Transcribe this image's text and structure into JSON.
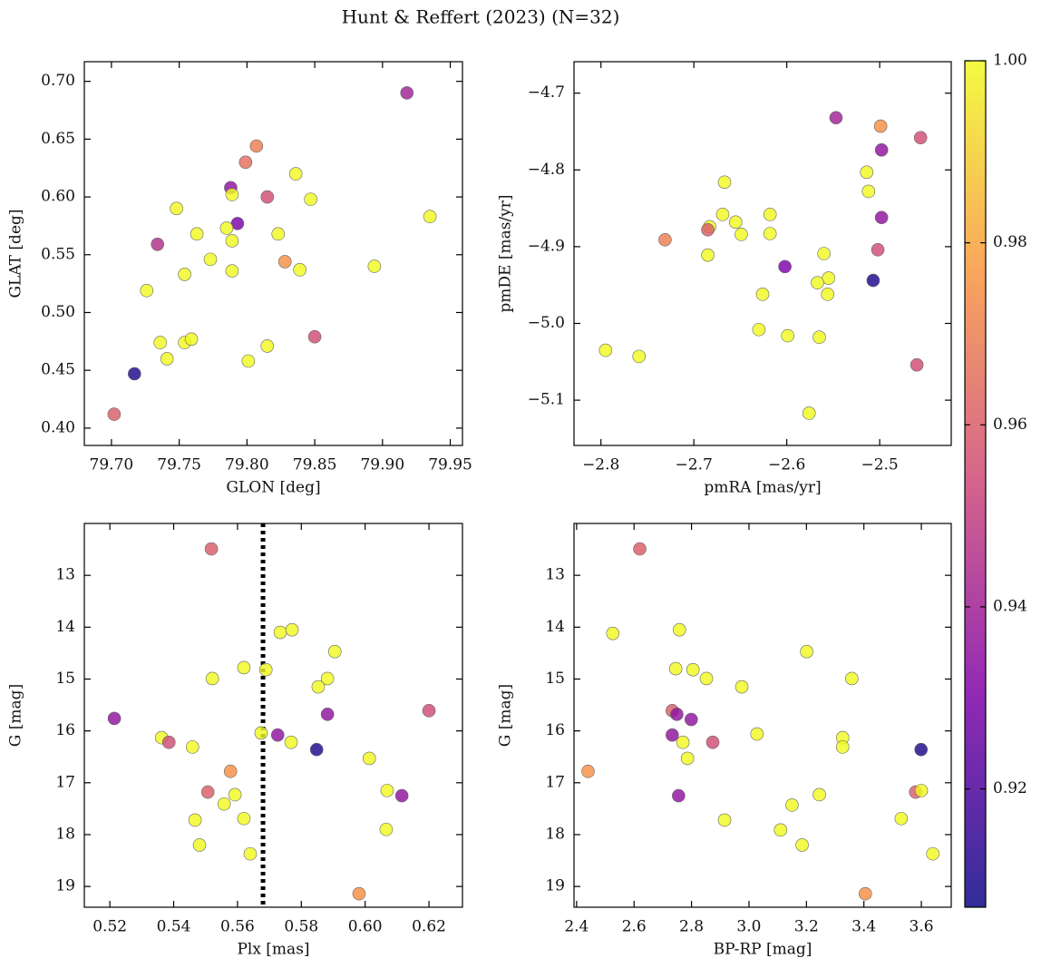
{
  "title": "Hunt & Reffert (2023) (N=32)",
  "chart_data": [
    {
      "type": "scatter",
      "xlabel": "GLON [deg]",
      "ylabel": "GLAT [deg]",
      "x": [
        79.918,
        79.807,
        79.799,
        79.788,
        79.789,
        79.836,
        79.815,
        79.847,
        79.748,
        79.793,
        79.785,
        79.763,
        79.823,
        79.789,
        79.734,
        79.773,
        79.828,
        79.935,
        79.789,
        79.839,
        79.754,
        79.894,
        79.726,
        79.736,
        79.754,
        79.759,
        79.815,
        79.85,
        79.741,
        79.801,
        79.717,
        79.702
      ],
      "y": [
        0.69,
        0.644,
        0.63,
        0.608,
        0.602,
        0.62,
        0.6,
        0.598,
        0.59,
        0.577,
        0.573,
        0.568,
        0.568,
        0.562,
        0.559,
        0.546,
        0.544,
        0.583,
        0.536,
        0.537,
        0.533,
        0.54,
        0.519,
        0.474,
        0.474,
        0.477,
        0.471,
        0.479,
        0.46,
        0.458,
        0.447,
        0.412
      ],
      "color_values": [
        0.94,
        0.97,
        0.965,
        0.935,
        1.0,
        1.0,
        0.955,
        1.0,
        1.0,
        0.93,
        1.0,
        1.0,
        1.0,
        1.0,
        0.945,
        1.0,
        0.975,
        1.0,
        1.0,
        1.0,
        1.0,
        1.0,
        1.0,
        1.0,
        1.0,
        1.0,
        1.0,
        0.955,
        1.0,
        1.0,
        0.91,
        0.96
      ],
      "xlim": [
        79.68,
        79.959
      ],
      "ylim": [
        0.385,
        0.717
      ],
      "xticks": [
        {
          "value": 79.7,
          "label": "79.70"
        },
        79.75,
        {
          "value": 79.8,
          "label": "79.80"
        },
        79.85,
        {
          "value": 79.9,
          "label": "79.90"
        },
        79.95
      ],
      "yticks": [
        {
          "value": 0.4,
          "label": "0.40"
        },
        0.45,
        {
          "value": 0.5,
          "label": "0.50"
        },
        0.55,
        {
          "value": 0.6,
          "label": "0.60"
        },
        0.65,
        {
          "value": 0.7,
          "label": "0.70"
        }
      ]
    },
    {
      "type": "scatter",
      "xlabel": "pmRA [mas/yr]",
      "ylabel": "pmDE [mas/yr]",
      "x": [
        -2.547,
        -2.499,
        -2.456,
        -2.498,
        -2.514,
        -2.512,
        -2.667,
        -2.498,
        -2.669,
        -2.618,
        -2.683,
        -2.655,
        -2.685,
        -2.649,
        -2.618,
        -2.731,
        -2.685,
        -2.502,
        -2.56,
        -2.602,
        -2.507,
        -2.555,
        -2.567,
        -2.556,
        -2.626,
        -2.63,
        -2.599,
        -2.565,
        -2.795,
        -2.759,
        -2.46,
        -2.576
      ],
      "y": [
        -4.732,
        -4.743,
        -4.758,
        -4.774,
        -4.803,
        -4.828,
        -4.816,
        -4.862,
        -4.858,
        -4.858,
        -4.874,
        -4.868,
        -4.878,
        -4.884,
        -4.883,
        -4.891,
        -4.911,
        -4.904,
        -4.909,
        -4.926,
        -4.944,
        -4.941,
        -4.947,
        -4.962,
        -4.962,
        -5.008,
        -5.016,
        -5.018,
        -5.035,
        -5.043,
        -5.054,
        -5.117
      ],
      "color_values": [
        0.94,
        0.975,
        0.955,
        0.935,
        1.0,
        1.0,
        1.0,
        0.935,
        1.0,
        1.0,
        1.0,
        1.0,
        0.96,
        1.0,
        1.0,
        0.97,
        1.0,
        0.955,
        1.0,
        0.93,
        0.91,
        1.0,
        1.0,
        1.0,
        1.0,
        1.0,
        1.0,
        1.0,
        1.0,
        1.0,
        0.955,
        1.0
      ],
      "xlim": [
        -2.829,
        -2.423
      ],
      "ylim": [
        -5.159,
        -4.659
      ],
      "xticks": [
        {
          "value": -2.8,
          "label": "−2.8"
        },
        {
          "value": -2.7,
          "label": "−2.7"
        },
        {
          "value": -2.6,
          "label": "−2.6"
        },
        {
          "value": -2.5,
          "label": "−2.5"
        }
      ],
      "yticks": [
        {
          "value": -5.1,
          "label": "−5.1"
        },
        {
          "value": -5.0,
          "label": "−5.0"
        },
        {
          "value": -4.9,
          "label": "−4.9"
        },
        {
          "value": -4.8,
          "label": "−4.8"
        },
        {
          "value": -4.7,
          "label": "−4.7"
        }
      ]
    },
    {
      "type": "scatter",
      "xlabel": "Plx [mas]",
      "ylabel": "G [mag]",
      "vline": 0.568,
      "x": [
        0.5518,
        0.5734,
        0.5771,
        0.5905,
        0.562,
        0.5689,
        0.5521,
        0.5882,
        0.5853,
        0.62,
        0.5214,
        0.5882,
        0.5362,
        0.5674,
        0.5726,
        0.5385,
        0.5768,
        0.5459,
        0.5848,
        0.6013,
        0.5578,
        0.5507,
        0.5592,
        0.6069,
        0.6115,
        0.5558,
        0.562,
        0.5467,
        0.6066,
        0.5481,
        0.564,
        0.5981
      ],
      "y": [
        12.49,
        14.1,
        14.05,
        14.47,
        14.78,
        14.82,
        14.99,
        14.99,
        15.15,
        15.61,
        15.76,
        15.68,
        16.13,
        16.04,
        16.08,
        16.22,
        16.22,
        16.31,
        16.36,
        16.53,
        16.78,
        17.18,
        17.23,
        17.15,
        17.25,
        17.41,
        17.69,
        17.72,
        17.9,
        18.2,
        18.37,
        19.14
      ],
      "color_values": [
        0.96,
        1.0,
        1.0,
        1.0,
        1.0,
        1.0,
        1.0,
        1.0,
        1.0,
        0.955,
        0.935,
        0.935,
        1.0,
        1.0,
        0.935,
        0.955,
        1.0,
        1.0,
        0.91,
        1.0,
        0.975,
        0.96,
        1.0,
        1.0,
        0.935,
        1.0,
        1.0,
        1.0,
        1.0,
        1.0,
        1.0,
        0.975
      ],
      "xlim": [
        0.512,
        0.6305
      ],
      "ylim": [
        19.4,
        12.0
      ],
      "xticks": [
        0.52,
        0.54,
        0.56,
        0.58,
        {
          "value": 0.6,
          "label": "0.60"
        },
        0.62
      ],
      "yticks": [
        13,
        14,
        15,
        16,
        17,
        18,
        19
      ]
    },
    {
      "type": "scatter",
      "xlabel": "BP-RP [mag]",
      "ylabel": "G [mag]",
      "x": [
        2.62,
        2.526,
        2.758,
        3.201,
        2.745,
        2.805,
        2.852,
        3.358,
        2.975,
        2.733,
        2.749,
        2.799,
        2.733,
        3.028,
        3.326,
        2.77,
        2.874,
        3.326,
        3.599,
        2.786,
        2.44,
        3.58,
        3.6,
        2.755,
        3.245,
        3.15,
        3.53,
        2.915,
        3.11,
        3.185,
        3.64,
        3.405
      ],
      "y": [
        12.49,
        14.12,
        14.05,
        14.47,
        14.8,
        14.82,
        14.99,
        14.99,
        15.15,
        15.61,
        15.68,
        15.78,
        16.08,
        16.06,
        16.13,
        16.22,
        16.22,
        16.31,
        16.36,
        16.53,
        16.78,
        17.18,
        17.15,
        17.25,
        17.23,
        17.43,
        17.69,
        17.72,
        17.91,
        18.2,
        18.37,
        19.14
      ],
      "color_values": [
        0.96,
        1.0,
        1.0,
        1.0,
        1.0,
        1.0,
        1.0,
        1.0,
        1.0,
        0.96,
        0.935,
        0.935,
        0.935,
        1.0,
        1.0,
        1.0,
        0.955,
        1.0,
        0.91,
        1.0,
        0.975,
        0.96,
        1.0,
        0.935,
        1.0,
        1.0,
        1.0,
        1.0,
        1.0,
        1.0,
        1.0,
        0.975
      ],
      "xlim": [
        2.391,
        3.704
      ],
      "ylim": [
        19.4,
        12.0
      ],
      "xticks": [
        2.4,
        2.6,
        2.8,
        {
          "value": 3.0,
          "label": "3.0"
        },
        3.2,
        3.4,
        3.6
      ],
      "yticks": [
        13,
        14,
        15,
        16,
        17,
        18,
        19
      ]
    }
  ],
  "colorbar": {
    "colormap": "plasma",
    "clim": [
      0.907,
      1.0
    ],
    "cticks": [
      0.92,
      0.94,
      0.96,
      0.98,
      {
        "value": 1.0,
        "label": "1.00"
      }
    ]
  }
}
